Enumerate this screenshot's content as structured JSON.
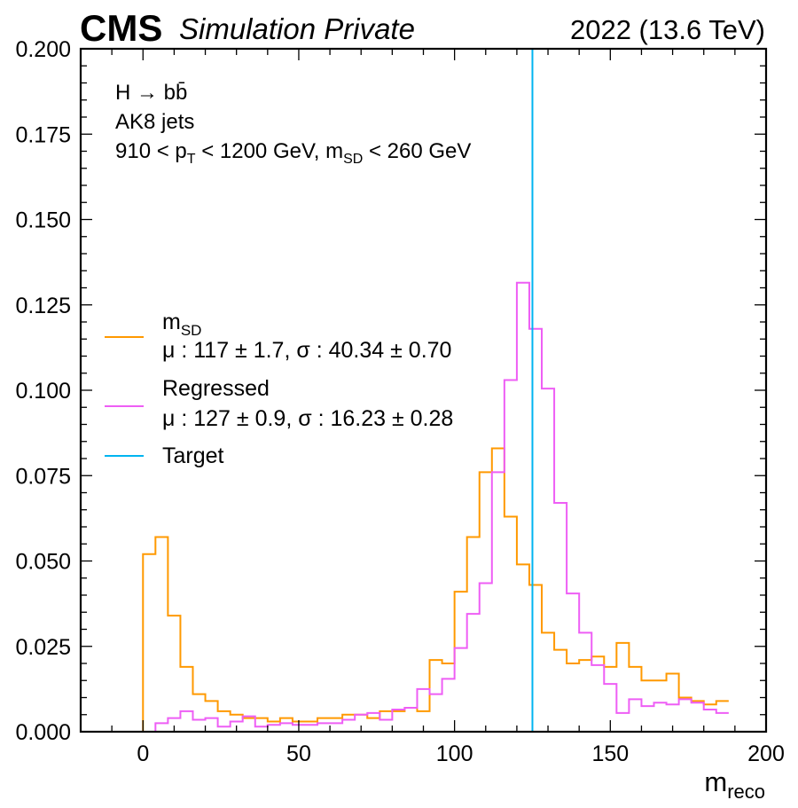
{
  "header": {
    "experiment": "CMS",
    "status": "Simulation Private",
    "lumi": "2022 (13.6 TeV)"
  },
  "annotation": {
    "line1": "H → bb̄",
    "line2": "AK8 jets",
    "line3": "910 < pT < 1200 GeV, mSD < 260 GeV"
  },
  "chart_data": {
    "type": "histogram",
    "xlabel": "m_reco",
    "ylabel": "",
    "xlim": [
      -20,
      200
    ],
    "ylim": [
      0,
      0.2
    ],
    "bin_width": 4,
    "bin_start": 0,
    "x_ticks": [
      0,
      50,
      100,
      150,
      200
    ],
    "y_ticks": [
      0.0,
      0.025,
      0.05,
      0.075,
      0.1,
      0.125,
      0.15,
      0.175,
      0.2
    ],
    "y_tick_labels": [
      "0.000",
      "0.025",
      "0.050",
      "0.075",
      "0.100",
      "0.125",
      "0.150",
      "0.175",
      "0.200"
    ],
    "legend_position": "center-left",
    "series": [
      {
        "name": "m_SD",
        "legend_sub": "SD",
        "legend_stats": "μ : 117 ± 1.7, σ : 40.34 ± 0.70",
        "color": "#ff9900",
        "values": [
          0.052,
          0.057,
          0.034,
          0.019,
          0.011,
          0.009,
          0.006,
          0.005,
          0.004,
          0.004,
          0.003,
          0.004,
          0.003,
          0.003,
          0.004,
          0.004,
          0.005,
          0.005,
          0.004,
          0.006,
          0.006,
          0.007,
          0.006,
          0.021,
          0.02,
          0.041,
          0.057,
          0.076,
          0.083,
          0.063,
          0.049,
          0.043,
          0.029,
          0.024,
          0.02,
          0.021,
          0.022,
          0.019,
          0.026,
          0.019,
          0.015,
          0.015,
          0.017,
          0.01,
          0.009,
          0.008,
          0.009
        ]
      },
      {
        "name": "Regressed",
        "legend_sub": "",
        "legend_stats": "μ : 127 ± 0.9, σ : 16.23 ± 0.28",
        "color": "#ee5ef5",
        "values": [
          0.0,
          0.0025,
          0.004,
          0.006,
          0.0035,
          0.004,
          0.0015,
          0.003,
          0.0045,
          0.0015,
          0.002,
          0.0025,
          0.002,
          0.002,
          0.0025,
          0.0025,
          0.0035,
          0.005,
          0.0055,
          0.0035,
          0.0065,
          0.007,
          0.0125,
          0.011,
          0.0155,
          0.0245,
          0.0345,
          0.0435,
          0.076,
          0.103,
          0.1315,
          0.118,
          0.1005,
          0.067,
          0.0405,
          0.029,
          0.0195,
          0.014,
          0.0055,
          0.0095,
          0.0075,
          0.0085,
          0.008,
          0.0095,
          0.0085,
          0.0065,
          0.0055
        ]
      },
      {
        "name": "Target",
        "legend_sub": "",
        "legend_stats": "",
        "color": "#00b4f0",
        "kind": "vline",
        "x": 125
      }
    ]
  }
}
